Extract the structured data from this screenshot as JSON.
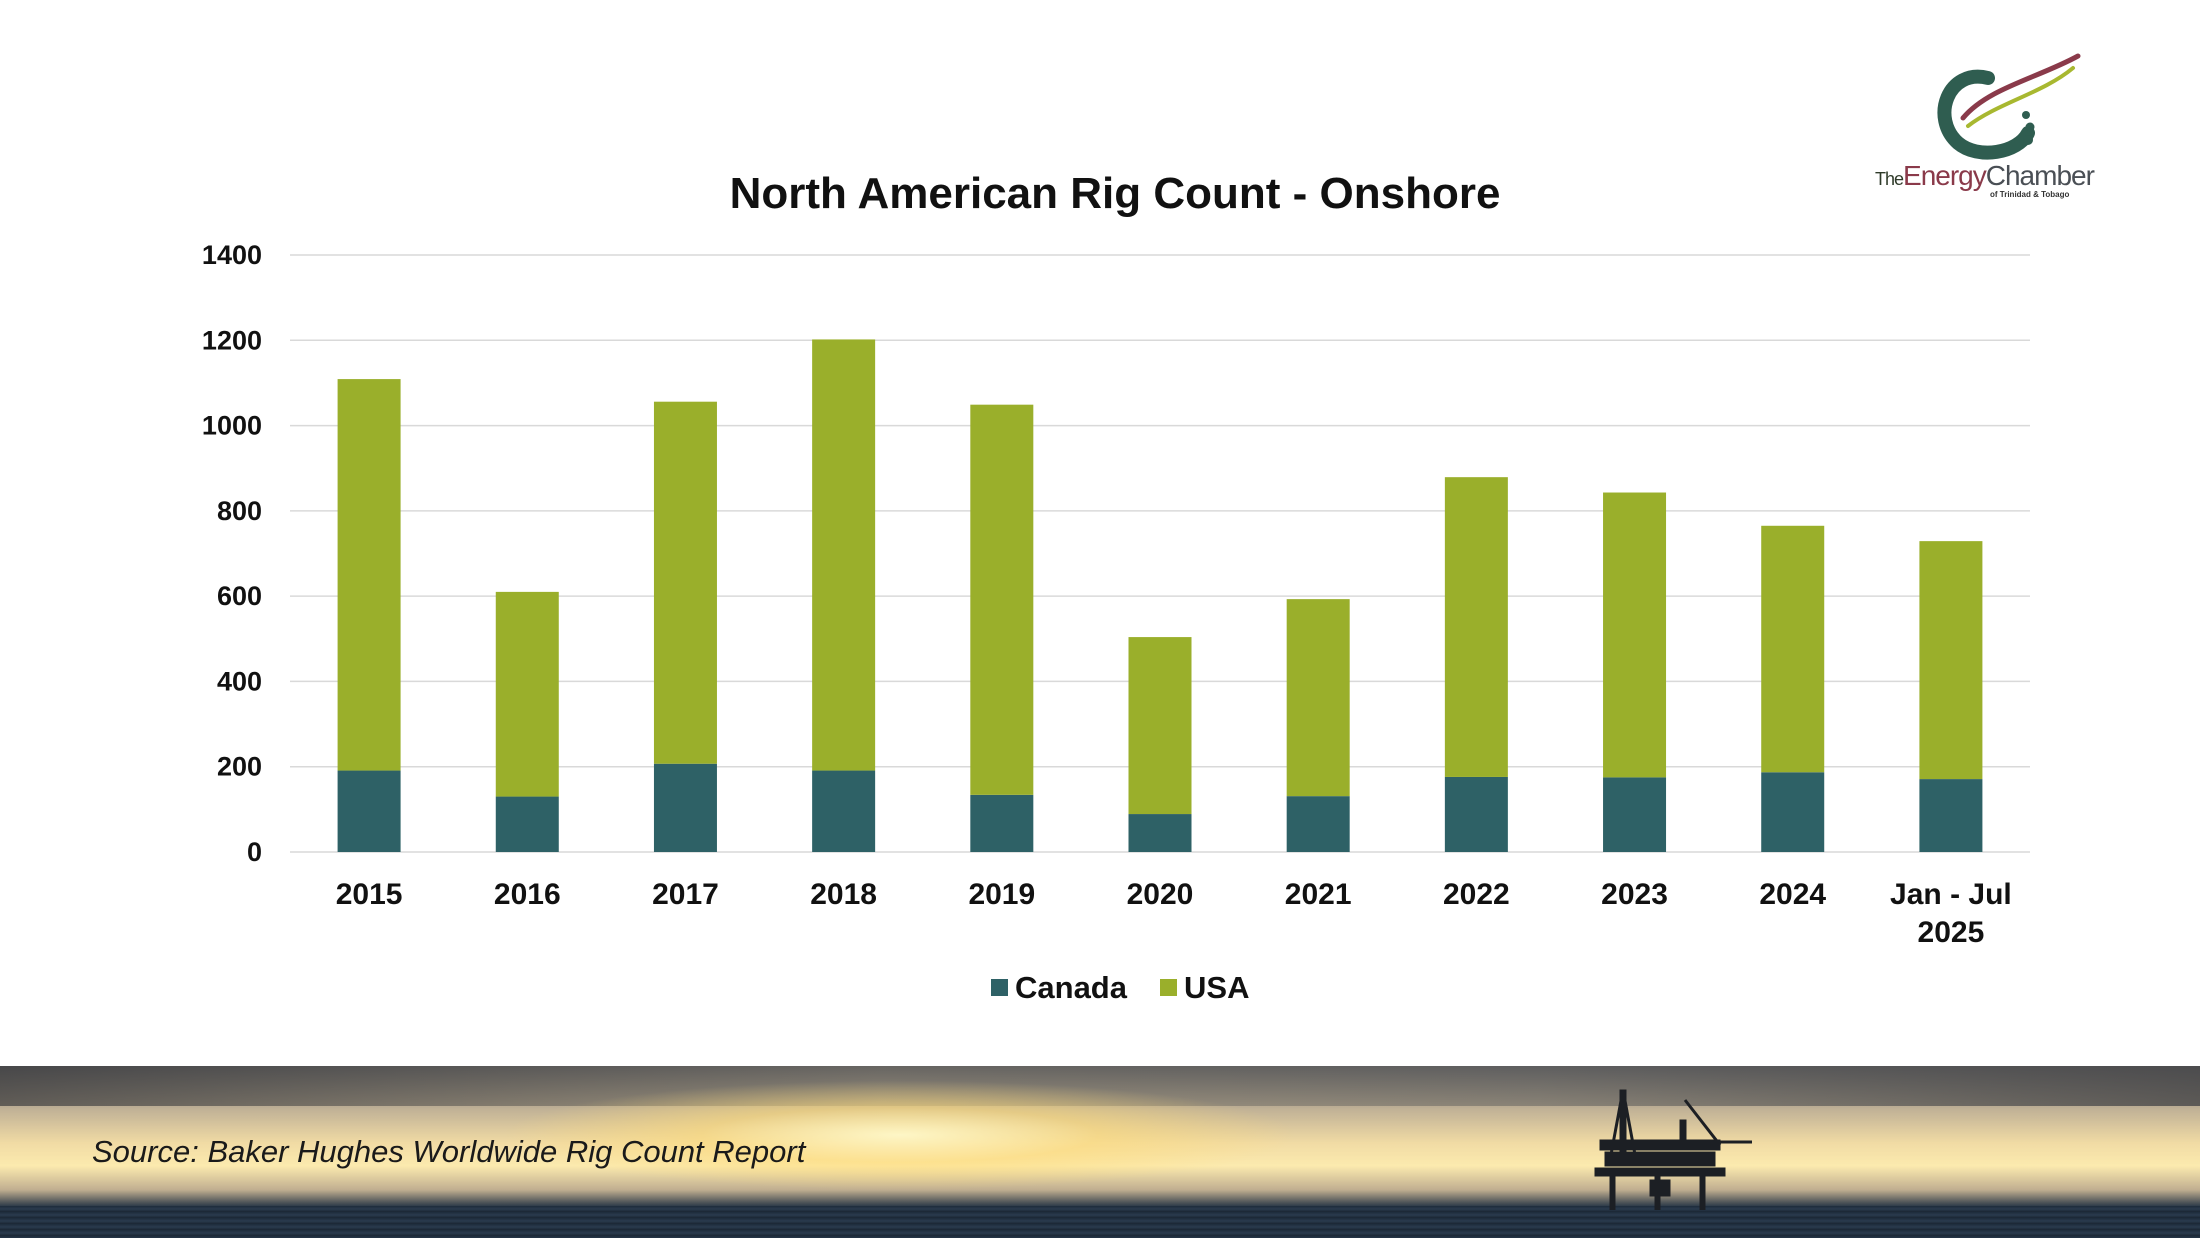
{
  "chart_data": {
    "type": "bar",
    "stacked": true,
    "title": "North American Rig Count - Onshore",
    "categories": [
      [
        "2015"
      ],
      [
        "2016"
      ],
      [
        "2017"
      ],
      [
        "2018"
      ],
      [
        "2019"
      ],
      [
        "2020"
      ],
      [
        "2021"
      ],
      [
        "2022"
      ],
      [
        "2023"
      ],
      [
        "2024"
      ],
      [
        "Jan - Jul",
        "2025"
      ]
    ],
    "series": [
      {
        "name": "Canada",
        "color": "#2e6166",
        "values": [
          191,
          130,
          207,
          191,
          134,
          89,
          131,
          176,
          175,
          187,
          171
        ]
      },
      {
        "name": "USA",
        "color": "#9aaf2b",
        "values": [
          918,
          480,
          849,
          1011,
          915,
          415,
          462,
          703,
          668,
          578,
          558
        ]
      }
    ],
    "yticks": [
      "0",
      "200",
      "400",
      "600",
      "800",
      "1000",
      "1200",
      "1400"
    ],
    "ylim": [
      0,
      1400
    ],
    "grid": true,
    "legend": "bottom-center"
  },
  "brand": {
    "logo_the": "The",
    "logo_energy": "Energy",
    "logo_chamber": "Chamber",
    "logo_sub": "of Trinidad & Tobago"
  },
  "footer": {
    "source": "Source: Baker Hughes Worldwide Rig Count Report"
  }
}
